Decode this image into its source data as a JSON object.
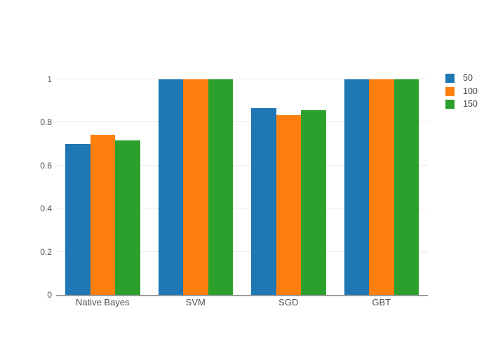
{
  "chart_data": {
    "type": "bar",
    "title": "",
    "xlabel": "",
    "ylabel": "",
    "categories": [
      "Native Bayes",
      "SVM",
      "SGD",
      "GBT"
    ],
    "series": [
      {
        "name": "50",
        "color": "#1f77b4",
        "values": [
          0.7,
          1.0,
          0.867,
          1.0
        ]
      },
      {
        "name": "100",
        "color": "#ff7f0e",
        "values": [
          0.742,
          1.0,
          0.833,
          1.0
        ]
      },
      {
        "name": "150",
        "color": "#2ca02c",
        "values": [
          0.717,
          1.0,
          0.858,
          1.0
        ]
      }
    ],
    "yticks": [
      0,
      0.2,
      0.4,
      0.6,
      0.8,
      1
    ],
    "ytick_labels": [
      "0",
      "0.2",
      "0.4",
      "0.6",
      "0.8",
      "1"
    ],
    "ylim": [
      0,
      1.073
    ],
    "grid": true,
    "legend_position": "right",
    "colors": {
      "background": "#ffffff",
      "axis_line": "#9b9b9b",
      "grid_line": "#ececec",
      "tick_text": "#515151",
      "legend_text": "#444444"
    }
  }
}
